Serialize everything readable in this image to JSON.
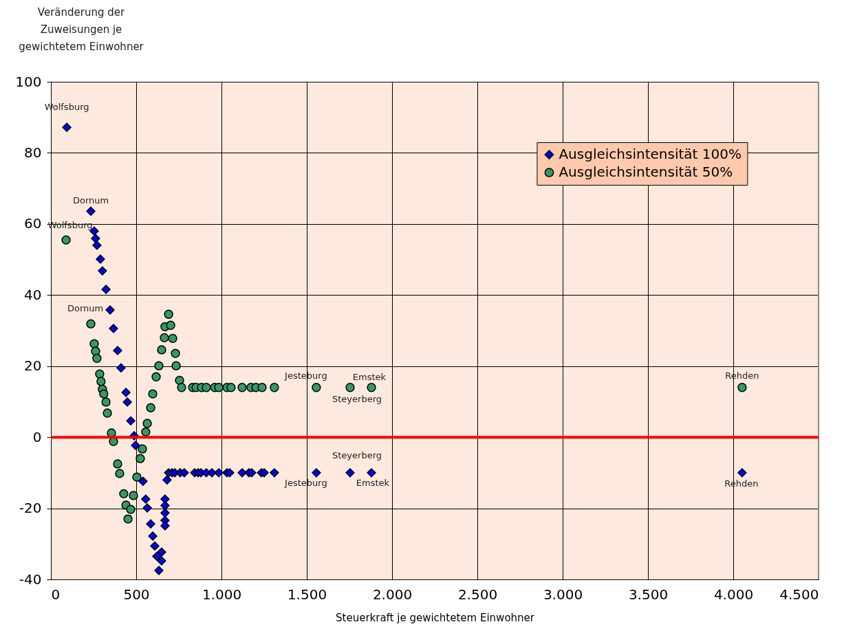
{
  "chart_data": {
    "type": "scatter",
    "xlabel": "Steuerkraft je gewichtetem Einwohner",
    "ylabel": "Veränderung der Zuweisungen je gewichtetem Einwohner",
    "xlim": [
      0,
      4500
    ],
    "xticks": [
      0,
      500,
      {
        "value": 1000,
        "label": "1.000"
      },
      {
        "value": 1500,
        "label": "1.500"
      },
      {
        "value": 2000,
        "label": "2.000"
      },
      {
        "value": 2500,
        "label": "2.500"
      },
      {
        "value": 3000,
        "label": "3.000"
      },
      {
        "value": 3500,
        "label": "3.500"
      },
      {
        "value": 4000,
        "label": "4.000"
      },
      {
        "value": 4500,
        "label": "4.500"
      }
    ],
    "ylim": [
      -40,
      100
    ],
    "yticks": [
      -40,
      -20,
      0,
      20,
      40,
      60,
      80,
      100
    ],
    "grid": true,
    "legend": "top right",
    "ref_lines": [
      {
        "axis": "y",
        "value": 0,
        "color": "#ff0000"
      }
    ],
    "series": [
      {
        "name": "Ausgleichsintensität 100%",
        "color": "#0000ff",
        "marker": "diamond",
        "x": [
          93,
          234,
          254,
          262,
          270,
          290,
          302,
          323,
          347,
          367,
          391,
          411,
          440,
          448,
          468,
          488,
          496,
          540,
          556,
          565,
          585,
          597,
          609,
          621,
          633,
          649,
          649,
          669,
          669,
          669,
          669,
          669,
          681,
          690,
          710,
          726,
          758,
          782,
          843,
          863,
          879,
          911,
          944,
          984,
          1032,
          1048,
          1121,
          1161,
          1177,
          1234,
          1250,
          1310,
          1556,
          1754,
          1879,
          4052
        ],
        "values": [
          87.2,
          63.6,
          58,
          55.9,
          54,
          50.1,
          46.8,
          41.6,
          35.8,
          30.6,
          24.4,
          19.5,
          12.6,
          9.9,
          4.6,
          0.4,
          -2.3,
          -12.4,
          -17.4,
          -19.9,
          -24.4,
          -27.8,
          -30.6,
          -33.5,
          -37.5,
          -32.3,
          -34.8,
          -17.4,
          -19.2,
          -21.3,
          -23.4,
          -24.9,
          -12,
          -10,
          -10,
          -10,
          -10,
          -10,
          -10,
          -10,
          -10,
          -10,
          -10,
          -10,
          -10,
          -10,
          -10,
          -10,
          -10,
          -10,
          -10,
          -10,
          -10,
          -10,
          -10,
          -10
        ]
      },
      {
        "name": "Ausgleichsintensität 50%",
        "color": "#339966",
        "marker": "circle",
        "x": [
          89,
          234,
          254,
          262,
          270,
          286,
          294,
          302,
          310,
          323,
          331,
          355,
          367,
          391,
          403,
          427,
          440,
          452,
          468,
          484,
          504,
          524,
          536,
          556,
          565,
          585,
          597,
          617,
          633,
          649,
          665,
          669,
          690,
          702,
          714,
          730,
          734,
          754,
          766,
          831,
          851,
          883,
          911,
          960,
          984,
          1032,
          1056,
          1121,
          1173,
          1202,
          1238,
          1310,
          1556,
          1754,
          1879,
          4052
        ],
        "values": [
          55.5,
          31.9,
          26.3,
          24.2,
          22.2,
          17.8,
          15.7,
          13.5,
          12.2,
          9.9,
          6.8,
          1.2,
          -1.2,
          -7.5,
          -10.2,
          -15.9,
          -19.1,
          -23,
          -20.3,
          -16.4,
          -11.2,
          -6,
          -3.3,
          1.5,
          3.9,
          8.3,
          12.2,
          17,
          20.1,
          24.6,
          28,
          31.1,
          34.6,
          31.5,
          27.8,
          23.6,
          20.1,
          16,
          14,
          14,
          14,
          14,
          14,
          14,
          14,
          14,
          14,
          14,
          14,
          14,
          14,
          14,
          14,
          14,
          14,
          14
        ]
      }
    ],
    "annotations": [
      {
        "text": "Wolfsburg",
        "x": 93,
        "y": 87.2
      },
      {
        "text": "Dornum",
        "x": 234,
        "y": 63.6
      },
      {
        "text": "Wolfsburg",
        "x": 89,
        "y": 55.5
      },
      {
        "text": "Dornum",
        "x": 234,
        "y": 31.9
      },
      {
        "text": "Jesteburg",
        "x": 1556,
        "y": 14
      },
      {
        "text": "Steyerberg",
        "x": 1754,
        "y": 14
      },
      {
        "text": "Emstek",
        "x": 1879,
        "y": 14
      },
      {
        "text": "Rehden",
        "x": 4052,
        "y": 14
      },
      {
        "text": "Steyerberg",
        "x": 1754,
        "y": -10
      },
      {
        "text": "Jesteburg",
        "x": 1556,
        "y": -10
      },
      {
        "text": "Emstek",
        "x": 1879,
        "y": -10
      },
      {
        "text": "Rehden",
        "x": 4052,
        "y": -10
      }
    ]
  }
}
